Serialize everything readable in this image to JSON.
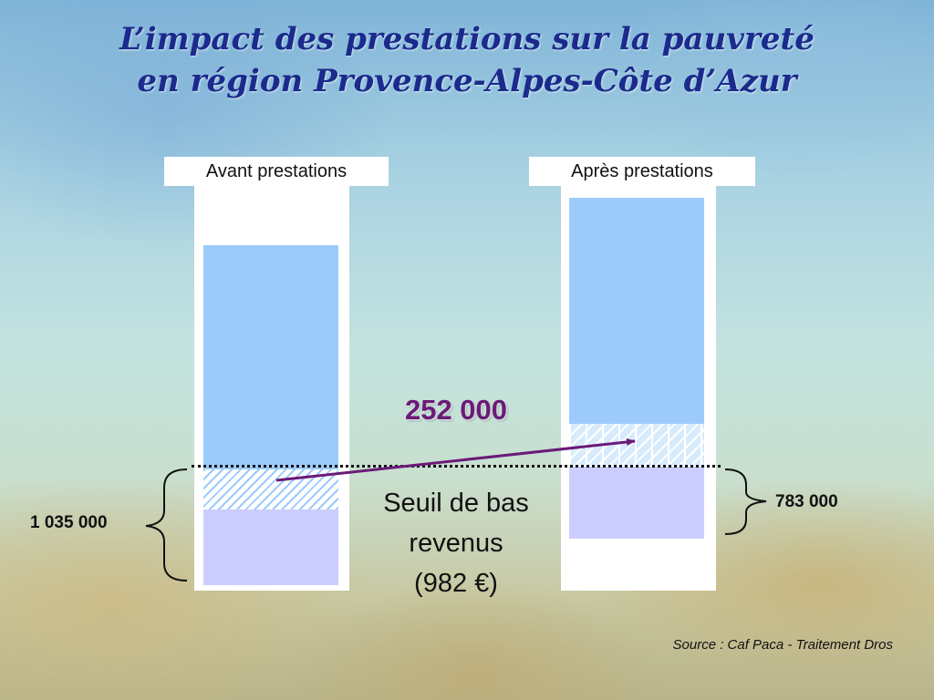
{
  "title": {
    "line1": "L’impact des prestations sur la pauvreté",
    "line2": "en région Provence-Alpes-Côte d’Azur"
  },
  "columns": [
    {
      "label": "Avant prestations",
      "count_label": "1 035 000"
    },
    {
      "label": "Après prestations",
      "count_label": "783 000"
    }
  ],
  "transfer_label": "252 000",
  "threshold": {
    "line1": "Seuil de bas",
    "line2": "revenus",
    "line3": "(982 €)"
  },
  "source": "Source : Caf Paca - Traitement Dros",
  "colors": {
    "title": "#1b2a8c",
    "above_threshold": "#9ccbfb",
    "below_threshold": "#cccdff",
    "arrow": "#6b1a78"
  }
}
